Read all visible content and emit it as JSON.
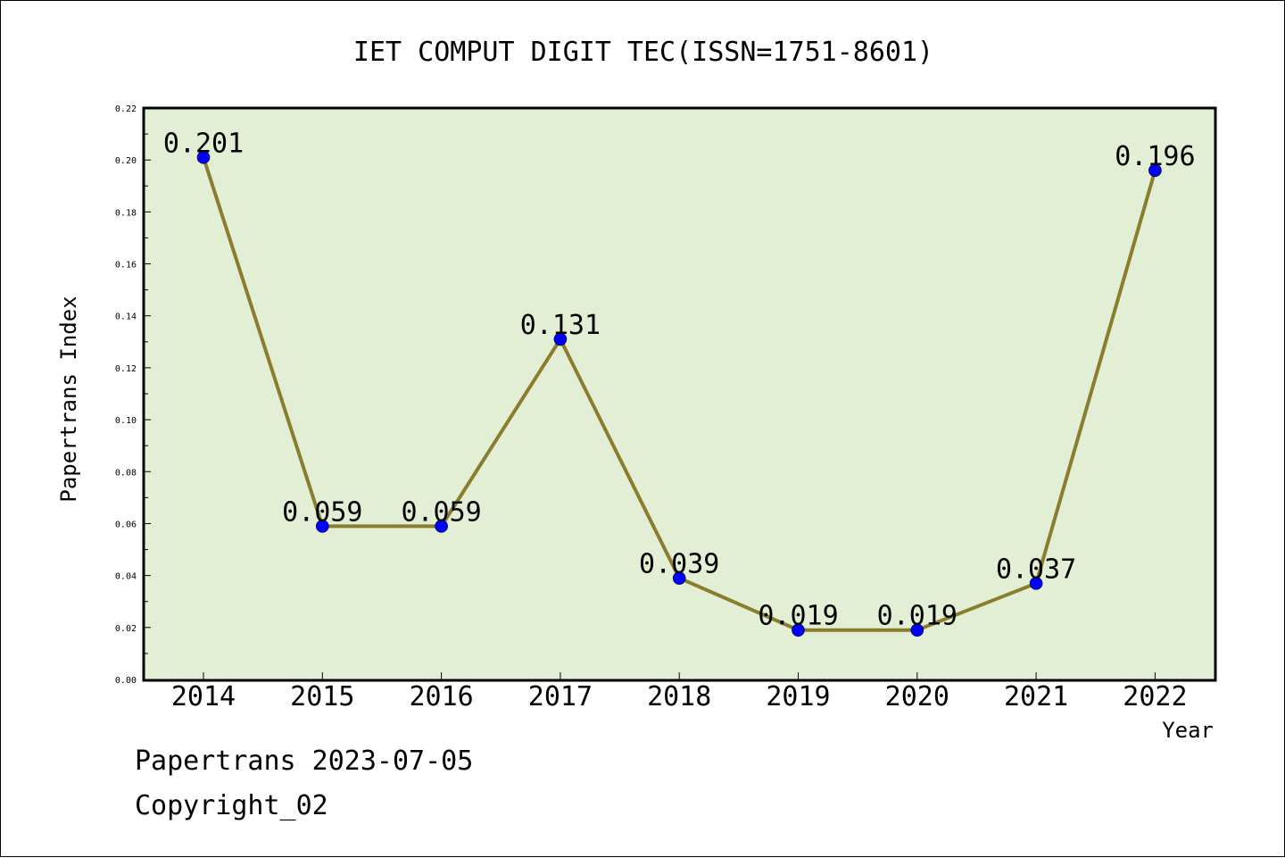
{
  "footer": {
    "line1": "Papertrans 2023-07-05",
    "line2": "Copyright_02"
  },
  "chart_data": {
    "type": "line",
    "title": "IET COMPUT DIGIT TEC(ISSN=1751-8601)",
    "xlabel": "Year",
    "ylabel": "Papertrans Index",
    "categories": [
      "2014",
      "2015",
      "2016",
      "2017",
      "2018",
      "2019",
      "2020",
      "2021",
      "2022"
    ],
    "values": [
      0.201,
      0.059,
      0.059,
      0.131,
      0.039,
      0.019,
      0.019,
      0.037,
      0.196
    ],
    "data_labels": [
      "0.201",
      "0.059",
      "0.059",
      "0.131",
      "0.039",
      "0.019",
      "0.019",
      "0.037",
      "0.196"
    ],
    "ylim": [
      0,
      0.22
    ],
    "yticks": [
      "0.00",
      "0.02",
      "0.04",
      "0.06",
      "0.08",
      "0.10",
      "0.12",
      "0.14",
      "0.16",
      "0.18",
      "0.20",
      "0.22"
    ],
    "grid": false,
    "legend": "none",
    "colors": {
      "plot_background": "#e2efd5",
      "line": "#8b7d2e",
      "marker": "#0000ff"
    }
  }
}
